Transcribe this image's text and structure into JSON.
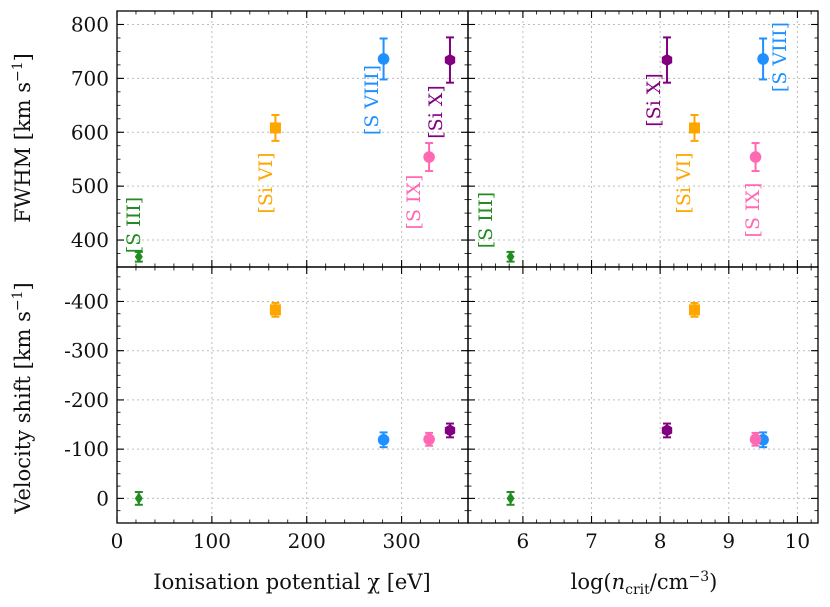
{
  "chart_data": {
    "type": "scatter",
    "panels": [
      {
        "id": "fwhm-vs-ip",
        "ylabel": "FWHM [km s$^{-1}$]",
        "ylim": [
          350,
          825
        ],
        "yticks": [
          400,
          500,
          600,
          700,
          800
        ],
        "xlim": [
          0,
          370
        ],
        "grid": true,
        "points": [
          {
            "label": "[S III]",
            "x": 23,
            "y": 369,
            "yerr": 9,
            "color": "#228b22",
            "marker": "diamond"
          },
          {
            "label": "[Si VI]",
            "x": 167,
            "y": 608,
            "yerr": 24,
            "color": "#ffa500",
            "marker": "square"
          },
          {
            "label": "[S VIII]",
            "x": 281,
            "y": 736,
            "yerr": 38,
            "color": "#1e90ff",
            "marker": "circle"
          },
          {
            "label": "[S IX]",
            "x": 329,
            "y": 554,
            "yerr": 26,
            "color": "#ff69b4",
            "marker": "circle"
          },
          {
            "label": "[Si X]",
            "x": 351,
            "y": 734,
            "yerr": 42,
            "color": "#800080",
            "marker": "hexagon"
          }
        ]
      },
      {
        "id": "fwhm-vs-ncrit",
        "ylim": [
          350,
          825
        ],
        "xlim": [
          5.2,
          10.3
        ],
        "grid": true,
        "points": [
          {
            "label": "[S III]",
            "x": 5.82,
            "y": 369,
            "yerr": 9,
            "color": "#228b22",
            "marker": "diamond"
          },
          {
            "label": "[Si VI]",
            "x": 8.5,
            "y": 608,
            "yerr": 24,
            "color": "#ffa500",
            "marker": "square"
          },
          {
            "label": "[S VIII]",
            "x": 9.5,
            "y": 736,
            "yerr": 38,
            "color": "#1e90ff",
            "marker": "circle"
          },
          {
            "label": "[S IX]",
            "x": 9.39,
            "y": 554,
            "yerr": 26,
            "color": "#ff69b4",
            "marker": "circle"
          },
          {
            "label": "[Si X]",
            "x": 8.1,
            "y": 734,
            "yerr": 42,
            "color": "#800080",
            "marker": "hexagon"
          }
        ]
      },
      {
        "id": "shift-vs-ip",
        "ylabel": "Velocity shift [km s$^{-1}$]",
        "xlabel": "Ionisation potential χ [eV]",
        "ylim": [
          50,
          -470
        ],
        "yticks": [
          0,
          -100,
          -200,
          -300,
          -400
        ],
        "yticklabels": [
          "0",
          "-100",
          "-200",
          "-300",
          "-400"
        ],
        "xlim": [
          0,
          370
        ],
        "xticks": [
          0,
          100,
          200,
          300
        ],
        "grid": true,
        "points": [
          {
            "label": "[S III]",
            "x": 23,
            "y": 0,
            "yerr": 13,
            "color": "#228b22",
            "marker": "diamond"
          },
          {
            "label": "[Si VI]",
            "x": 167,
            "y": -383,
            "yerr": 14,
            "color": "#ffa500",
            "marker": "square"
          },
          {
            "label": "[S VIII]",
            "x": 281,
            "y": -119,
            "yerr": 15,
            "color": "#1e90ff",
            "marker": "circle"
          },
          {
            "label": "[S IX]",
            "x": 329,
            "y": -120,
            "yerr": 13,
            "color": "#ff69b4",
            "marker": "circle"
          },
          {
            "label": "[Si X]",
            "x": 351,
            "y": -138,
            "yerr": 14,
            "color": "#800080",
            "marker": "hexagon"
          }
        ]
      },
      {
        "id": "shift-vs-ncrit",
        "xlabel": "log(n_crit/cm$^{-3}$)",
        "ylim": [
          50,
          -470
        ],
        "xlim": [
          5.2,
          10.3
        ],
        "xticks": [
          6,
          7,
          8,
          9,
          10
        ],
        "grid": true,
        "points": [
          {
            "label": "[S III]",
            "x": 5.82,
            "y": 0,
            "yerr": 13,
            "color": "#228b22",
            "marker": "diamond"
          },
          {
            "label": "[Si VI]",
            "x": 8.5,
            "y": -383,
            "yerr": 14,
            "color": "#ffa500",
            "marker": "square"
          },
          {
            "label": "[S VIII]",
            "x": 9.5,
            "y": -119,
            "yerr": 15,
            "color": "#1e90ff",
            "marker": "circle"
          },
          {
            "label": "[S IX]",
            "x": 9.39,
            "y": -120,
            "yerr": 13,
            "color": "#ff69b4",
            "marker": "circle"
          },
          {
            "label": "[Si X]",
            "x": 8.1,
            "y": -138,
            "yerr": 14,
            "color": "#800080",
            "marker": "hexagon"
          }
        ]
      }
    ]
  }
}
